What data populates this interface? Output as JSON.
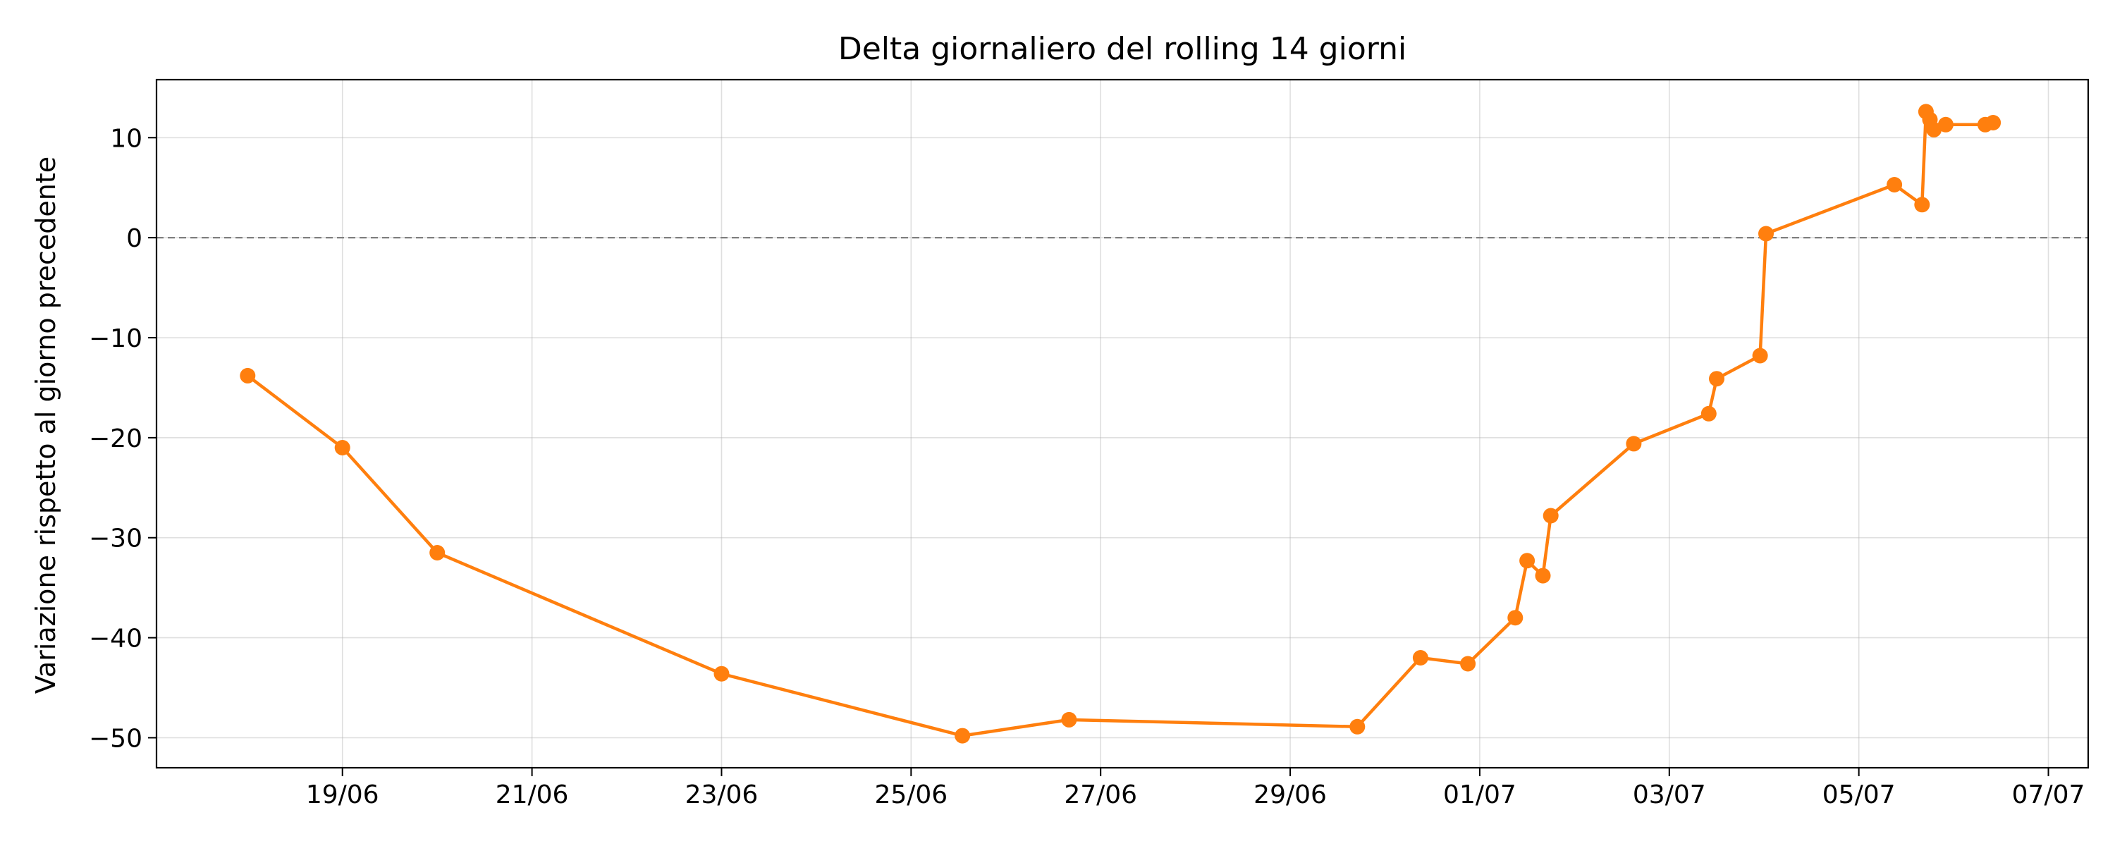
{
  "chart_data": {
    "type": "line",
    "title": "Delta giornaliero del rolling 14 giorni",
    "xlabel": "",
    "ylabel": "Variazione rispetto al giorno precedente",
    "x_axis": {
      "kind": "date",
      "ticks": [
        "2024-06-19",
        "2024-06-21",
        "2024-06-23",
        "2024-06-25",
        "2024-06-27",
        "2024-06-29",
        "2024-07-01",
        "2024-07-03",
        "2024-07-05",
        "2024-07-07"
      ],
      "tick_labels": [
        "19/06",
        "21/06",
        "23/06",
        "25/06",
        "27/06",
        "29/06",
        "01/07",
        "03/07",
        "05/07",
        "07/07"
      ],
      "xlim": [
        "2024-06-17 00:55",
        "2024-07-07 10:05"
      ]
    },
    "y_axis": {
      "ticks": [
        -50,
        -40,
        -30,
        -20,
        -10,
        0,
        10
      ],
      "tick_labels": [
        "−50",
        "−40",
        "−30",
        "−20",
        "−10",
        "0",
        "10"
      ],
      "ylim": [
        -53,
        15.8
      ]
    },
    "reference_line": {
      "y": 0,
      "style": "dashed",
      "color": "#808080"
    },
    "grid": true,
    "series": [
      {
        "color": "#ff7f0e",
        "marker": "circle",
        "points": [
          {
            "x": "2024-06-18 00:00",
            "y": -13.8
          },
          {
            "x": "2024-06-19 00:00",
            "y": -21.0
          },
          {
            "x": "2024-06-20 00:00",
            "y": -31.5
          },
          {
            "x": "2024-06-23 00:00",
            "y": -43.6
          },
          {
            "x": "2024-06-25 13:00",
            "y": -49.8
          },
          {
            "x": "2024-06-26 16:00",
            "y": -48.2
          },
          {
            "x": "2024-06-29 17:00",
            "y": -48.9
          },
          {
            "x": "2024-06-30 09:00",
            "y": -42.0
          },
          {
            "x": "2024-06-30 21:00",
            "y": -42.6
          },
          {
            "x": "2024-07-01 09:00",
            "y": -38.0
          },
          {
            "x": "2024-07-01 12:00",
            "y": -32.3
          },
          {
            "x": "2024-07-01 16:00",
            "y": -33.8
          },
          {
            "x": "2024-07-01 18:00",
            "y": -27.8
          },
          {
            "x": "2024-07-02 15:00",
            "y": -20.6
          },
          {
            "x": "2024-07-03 10:00",
            "y": -17.6
          },
          {
            "x": "2024-07-03 12:00",
            "y": -14.1
          },
          {
            "x": "2024-07-03 23:00",
            "y": -11.8
          },
          {
            "x": "2024-07-04 00:30",
            "y": 0.4
          },
          {
            "x": "2024-07-05 09:00",
            "y": 5.3
          },
          {
            "x": "2024-07-05 16:00",
            "y": 3.3
          },
          {
            "x": "2024-07-05 17:00",
            "y": 12.6
          },
          {
            "x": "2024-07-05 18:00",
            "y": 11.8
          },
          {
            "x": "2024-07-05 19:00",
            "y": 10.8
          },
          {
            "x": "2024-07-05 22:00",
            "y": 11.3
          },
          {
            "x": "2024-07-06 08:00",
            "y": 11.3
          },
          {
            "x": "2024-07-06 10:00",
            "y": 11.5
          }
        ]
      }
    ]
  }
}
